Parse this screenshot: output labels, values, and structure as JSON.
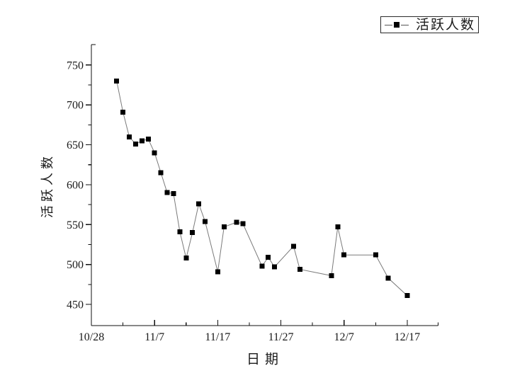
{
  "figure": {
    "background": "#ffffff",
    "axes_color": "#111111",
    "text_color": "#1a1a1a"
  },
  "legend": {
    "label": "活跃人数",
    "marker": "filled-square",
    "marker_color": "#000000",
    "line_color": "#555555",
    "border_color": "#2a2a2a",
    "position": "top-right-outside-plot"
  },
  "chart_data": {
    "type": "line",
    "title": "",
    "xlabel": "日期",
    "ylabel": "活跃人数",
    "grid": false,
    "legend_position": "top-right",
    "marker": "square",
    "marker_color": "#000000",
    "line_color": "#7a7a7a",
    "ylim": [
      423.5,
      775.5
    ],
    "xlim_days": [
      0,
      54.9
    ],
    "x_axis_origin_date": "10/28",
    "y_ticks": [
      450,
      500,
      550,
      600,
      650,
      700,
      750
    ],
    "y_minor_ticks": [
      475,
      525,
      575,
      625,
      675,
      725
    ],
    "x_ticks": [
      {
        "label": "10/28",
        "day": 0
      },
      {
        "label": "11/7",
        "day": 10
      },
      {
        "label": "11/17",
        "day": 20
      },
      {
        "label": "11/27",
        "day": 30
      },
      {
        "label": "12/7",
        "day": 40
      },
      {
        "label": "12/17",
        "day": 50
      }
    ],
    "x_minor_tick_days": [
      5,
      15,
      25,
      35,
      45
    ],
    "series": [
      {
        "name": "活跃人数",
        "points": [
          {
            "date": "11/1",
            "day": 4,
            "value": 730
          },
          {
            "date": "11/2",
            "day": 5,
            "value": 691
          },
          {
            "date": "11/3",
            "day": 6,
            "value": 660
          },
          {
            "date": "11/4",
            "day": 7,
            "value": 651
          },
          {
            "date": "11/5",
            "day": 8,
            "value": 655
          },
          {
            "date": "11/6",
            "day": 9,
            "value": 657
          },
          {
            "date": "11/7",
            "day": 10,
            "value": 640
          },
          {
            "date": "11/8",
            "day": 11,
            "value": 615
          },
          {
            "date": "11/9",
            "day": 12,
            "value": 590
          },
          {
            "date": "11/10",
            "day": 13,
            "value": 589
          },
          {
            "date": "11/11",
            "day": 14,
            "value": 541
          },
          {
            "date": "11/12",
            "day": 15,
            "value": 508
          },
          {
            "date": "11/13",
            "day": 16,
            "value": 540
          },
          {
            "date": "11/14",
            "day": 17,
            "value": 576
          },
          {
            "date": "11/15",
            "day": 18,
            "value": 554
          },
          {
            "date": "11/17",
            "day": 20,
            "value": 491
          },
          {
            "date": "11/18",
            "day": 21,
            "value": 547
          },
          {
            "date": "11/20",
            "day": 23,
            "value": 553
          },
          {
            "date": "11/21",
            "day": 24,
            "value": 551
          },
          {
            "date": "11/24",
            "day": 27,
            "value": 498
          },
          {
            "date": "11/25",
            "day": 28,
            "value": 509
          },
          {
            "date": "11/26",
            "day": 29,
            "value": 497
          },
          {
            "date": "11/29",
            "day": 32,
            "value": 523
          },
          {
            "date": "11/30",
            "day": 33,
            "value": 494
          },
          {
            "date": "12/5",
            "day": 38,
            "value": 486
          },
          {
            "date": "12/6",
            "day": 39,
            "value": 547
          },
          {
            "date": "12/7",
            "day": 40,
            "value": 512
          },
          {
            "date": "12/12",
            "day": 45,
            "value": 512
          },
          {
            "date": "12/14",
            "day": 47,
            "value": 483
          },
          {
            "date": "12/17",
            "day": 50,
            "value": 461
          }
        ]
      }
    ]
  }
}
